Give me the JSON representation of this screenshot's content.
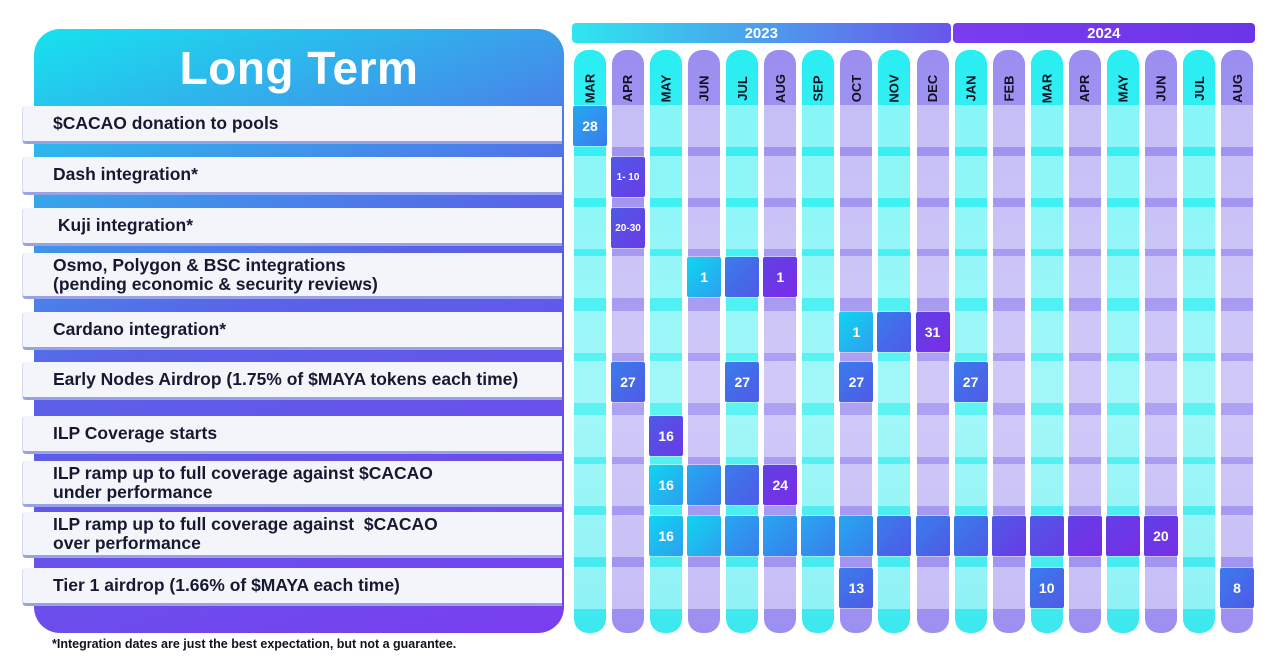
{
  "title": "Long Term",
  "years": [
    {
      "label": "2023",
      "first_month_index": 0,
      "last_month_index": 9,
      "color_from": "#2ee6ee",
      "color_to": "#6a55ec"
    },
    {
      "label": "2024",
      "first_month_index": 10,
      "last_month_index": 17,
      "color_from": "#7a3df0",
      "color_to": "#6a35e8"
    }
  ],
  "months": [
    "MAR",
    "APR",
    "MAY",
    "JUN",
    "JUL",
    "AUG",
    "SEP",
    "OCT",
    "NOV",
    "DEC",
    "JAN",
    "FEB",
    "MAR",
    "APR",
    "MAY",
    "JUN",
    "JUL",
    "AUG"
  ],
  "rows": [
    {
      "label_lines": [
        "$CACAO donation to pools"
      ],
      "cells": [
        {
          "month_index": 0,
          "text": "28",
          "shade": 1
        }
      ]
    },
    {
      "label_lines": [
        "Dash integration*"
      ],
      "cells": [
        {
          "month_index": 1,
          "text": "1- 10",
          "shade": 3,
          "small": true
        }
      ]
    },
    {
      "label_lines": [
        " Kuji integration*"
      ],
      "cells": [
        {
          "month_index": 1,
          "text": "20-30",
          "shade": 3,
          "small": true
        }
      ]
    },
    {
      "label_lines": [
        "Osmo, Polygon & BSC integrations",
        "(pending economic & security reviews)"
      ],
      "cells": [
        {
          "month_index": 3,
          "text": "1",
          "shade": 0
        },
        {
          "month_index": 4,
          "text": "",
          "shade": 2
        },
        {
          "month_index": 5,
          "text": "1",
          "shade": 4
        }
      ]
    },
    {
      "label_lines": [
        "Cardano integration*"
      ],
      "cells": [
        {
          "month_index": 7,
          "text": "1",
          "shade": 0
        },
        {
          "month_index": 8,
          "text": "",
          "shade": 2
        },
        {
          "month_index": 9,
          "text": "31",
          "shade": 4
        }
      ]
    },
    {
      "label_lines": [
        "Early Nodes Airdrop (1.75% of $MAYA tokens each time)"
      ],
      "cells": [
        {
          "month_index": 1,
          "text": "27",
          "shade": 2
        },
        {
          "month_index": 4,
          "text": "27",
          "shade": 2
        },
        {
          "month_index": 7,
          "text": "27",
          "shade": 2
        },
        {
          "month_index": 10,
          "text": "27",
          "shade": 2
        }
      ]
    },
    {
      "label_lines": [
        "ILP Coverage starts"
      ],
      "cells": [
        {
          "month_index": 2,
          "text": "16",
          "shade": 3
        }
      ]
    },
    {
      "label_lines": [
        "ILP ramp up to full coverage against $CACAO",
        "under performance"
      ],
      "cells": [
        {
          "month_index": 2,
          "text": "16",
          "shade": 0
        },
        {
          "month_index": 3,
          "text": "",
          "shade": 1
        },
        {
          "month_index": 4,
          "text": "",
          "shade": 2
        },
        {
          "month_index": 5,
          "text": "24",
          "shade": 4
        }
      ]
    },
    {
      "label_lines": [
        "ILP ramp up to full coverage against  $CACAO",
        "over performance"
      ],
      "cells": [
        {
          "month_index": 2,
          "text": "16",
          "shade": 0
        },
        {
          "month_index": 3,
          "text": "",
          "shade": 0
        },
        {
          "month_index": 4,
          "text": "",
          "shade": 1
        },
        {
          "month_index": 5,
          "text": "",
          "shade": 1
        },
        {
          "month_index": 6,
          "text": "",
          "shade": 1
        },
        {
          "month_index": 7,
          "text": "",
          "shade": 1
        },
        {
          "month_index": 8,
          "text": "",
          "shade": 2
        },
        {
          "month_index": 9,
          "text": "",
          "shade": 2
        },
        {
          "month_index": 10,
          "text": "",
          "shade": 2
        },
        {
          "month_index": 11,
          "text": "",
          "shade": 3
        },
        {
          "month_index": 12,
          "text": "",
          "shade": 3
        },
        {
          "month_index": 13,
          "text": "",
          "shade": 4
        },
        {
          "month_index": 14,
          "text": "",
          "shade": 4
        },
        {
          "month_index": 15,
          "text": "20",
          "shade": 4
        }
      ]
    },
    {
      "label_lines": [
        "Tier 1 airdrop (1.66% of $MAYA each time)"
      ],
      "cells": [
        {
          "month_index": 7,
          "text": "13",
          "shade": 2
        },
        {
          "month_index": 12,
          "text": "10",
          "shade": 2
        },
        {
          "month_index": 17,
          "text": "8",
          "shade": 2
        }
      ]
    }
  ],
  "footnote": "*Integration dates are just the best expectation, but not a guarantee."
}
